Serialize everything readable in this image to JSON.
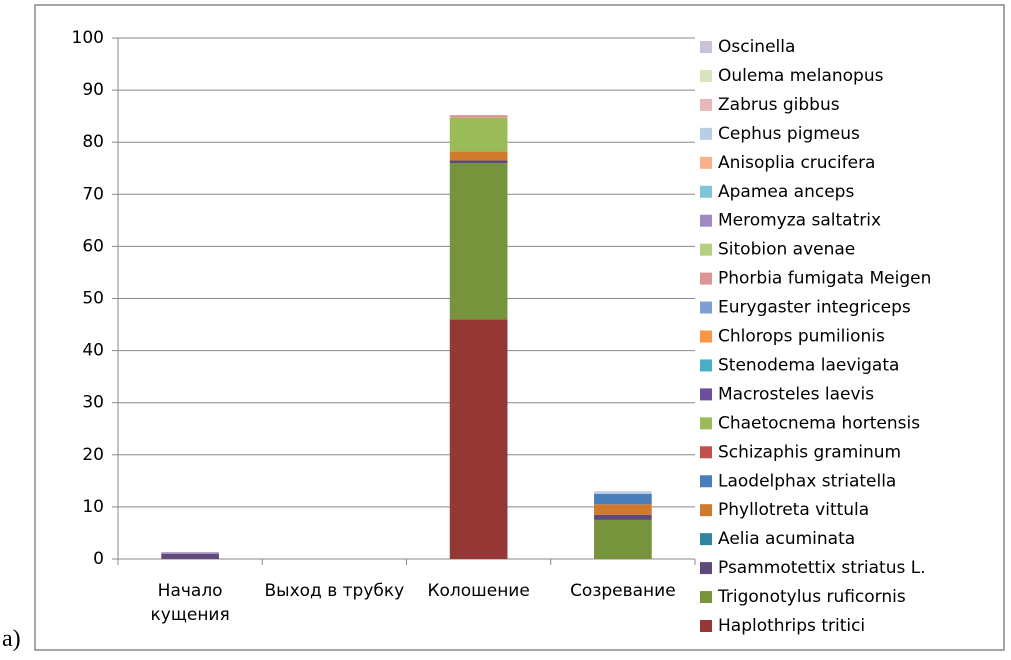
{
  "chart_data": {
    "type": "stacked_bar",
    "annotation": "a)",
    "categories": [
      "Начало кущения",
      "Выход в трубку",
      "Колошение",
      "Созревание"
    ],
    "ylim": [
      0,
      100
    ],
    "yticks": [
      0,
      10,
      20,
      30,
      40,
      50,
      60,
      70,
      80,
      90,
      100
    ],
    "grid": true,
    "legend": "right",
    "series": [
      {
        "name": "Haplothrips tritici",
        "color": "#953735",
        "values": [
          0,
          0,
          46,
          0
        ]
      },
      {
        "name": "Trigonotylus ruficornis",
        "color": "#77933c",
        "values": [
          0,
          0,
          30,
          7.5
        ]
      },
      {
        "name": "Psammotettix striatus L.",
        "color": "#604a7b",
        "values": [
          1,
          0,
          0.5,
          1
        ]
      },
      {
        "name": "Aelia acuminata",
        "color": "#31859c",
        "values": [
          0,
          0,
          0,
          0
        ]
      },
      {
        "name": "Phyllotreta vittula",
        "color": "#d07a2e",
        "values": [
          0,
          0,
          1.7,
          2
        ]
      },
      {
        "name": "Laodelphax striatella",
        "color": "#4a7ebb",
        "values": [
          0,
          0,
          0,
          2
        ]
      },
      {
        "name": "Schizaphis graminum",
        "color": "#c0504d",
        "values": [
          0,
          0,
          0,
          0
        ]
      },
      {
        "name": "Chaetocnema hortensis",
        "color": "#9bbb59",
        "values": [
          0,
          0,
          6.5,
          0
        ]
      },
      {
        "name": "Macrosteles laevis",
        "color": "#6b4f9e",
        "values": [
          0,
          0,
          0,
          0
        ]
      },
      {
        "name": "Stenodema laevigata",
        "color": "#4bacc6",
        "values": [
          0,
          0,
          0,
          0
        ]
      },
      {
        "name": "Chlorops pumilionis",
        "color": "#f79646",
        "values": [
          0,
          0,
          0,
          0
        ]
      },
      {
        "name": "Eurygaster integriceps",
        "color": "#7f9fd4",
        "values": [
          0,
          0,
          0,
          0
        ]
      },
      {
        "name": "Phorbia fumigata Meigen",
        "color": "#d99694",
        "values": [
          0,
          0,
          0.5,
          0
        ]
      },
      {
        "name": "Sitobion avenae",
        "color": "#b3cf7f",
        "values": [
          0,
          0,
          0,
          0
        ]
      },
      {
        "name": "Meromyza saltatrix",
        "color": "#a08bc0",
        "values": [
          0.3,
          0,
          0,
          0
        ]
      },
      {
        "name": "Apamea anceps",
        "color": "#7fc4d8",
        "values": [
          0,
          0,
          0,
          0
        ]
      },
      {
        "name": "Anisoplia crucifera",
        "color": "#fab08a",
        "values": [
          0,
          0,
          0,
          0
        ]
      },
      {
        "name": "Cephus pigmeus",
        "color": "#b9cde5",
        "values": [
          0,
          0,
          0,
          0.5
        ]
      },
      {
        "name": "Zabrus gibbus",
        "color": "#e6b9b8",
        "values": [
          0,
          0,
          0,
          0
        ]
      },
      {
        "name": "Oulema melanopus",
        "color": "#d7e4bd",
        "values": [
          0,
          0,
          0,
          0
        ]
      },
      {
        "name": "Oscinella",
        "color": "#ccc1da",
        "values": [
          0,
          0,
          0,
          0
        ]
      }
    ]
  }
}
